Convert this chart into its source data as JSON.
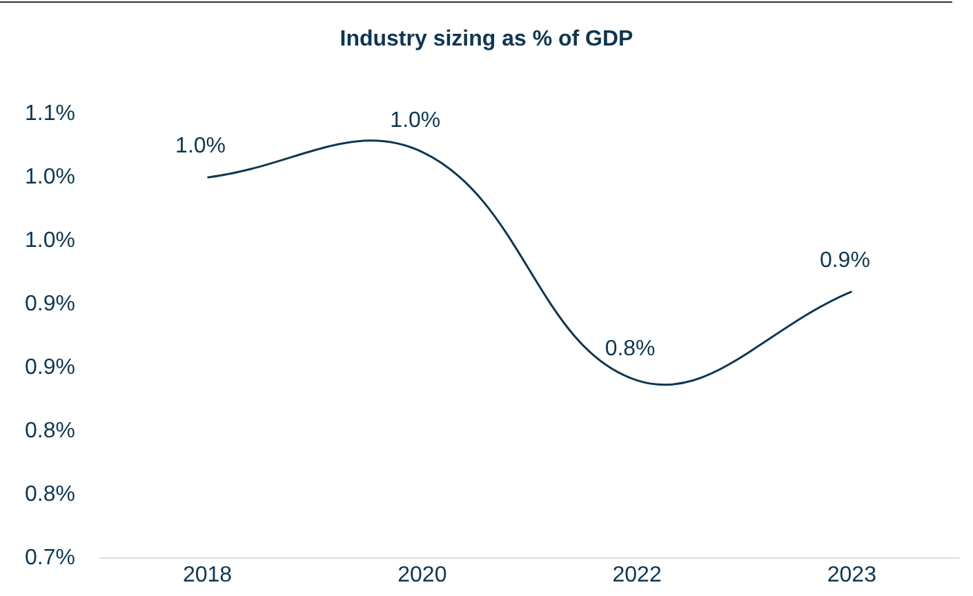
{
  "chart_data": {
    "type": "line",
    "title": "Industry sizing as % of GDP",
    "categories": [
      "2018",
      "2020",
      "2022",
      "2023"
    ],
    "series": [
      {
        "color": "#0d3652",
        "values": [
          1.0,
          1.02,
          0.84,
          0.91
        ],
        "value_labels": [
          "1.0%",
          "1.0%",
          "0.8%",
          "0.9%"
        ]
      }
    ],
    "ylim": [
      0.7,
      1.05
    ],
    "yticks": [
      {
        "value": 0.7,
        "label": "0.7%"
      },
      {
        "value": 0.75,
        "label": "0.8%"
      },
      {
        "value": 0.8,
        "label": "0.8%"
      },
      {
        "value": 0.85,
        "label": "0.9%"
      },
      {
        "value": 0.9,
        "label": "0.9%"
      },
      {
        "value": 0.95,
        "label": "1.0%"
      },
      {
        "value": 1.0,
        "label": "1.0%"
      },
      {
        "value": 1.05,
        "label": "1.1%"
      }
    ],
    "grid": false,
    "legend": false,
    "marker": "none",
    "line_style": "solid"
  }
}
